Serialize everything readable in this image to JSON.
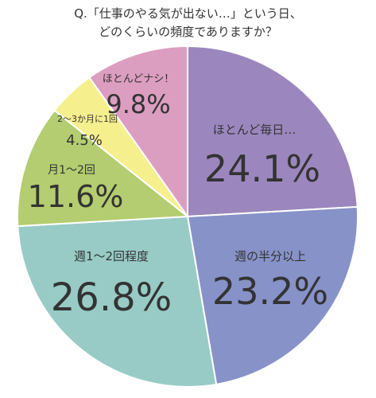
{
  "chart_data": {
    "type": "pie",
    "title_line1": "Q.「仕事のやる気が出ない…」という日、",
    "title_line2": "どのくらいの頻度でありますか？",
    "slices": [
      {
        "label": "ほとんど毎日…",
        "value": 24.1,
        "value_label": "24.1%",
        "color": "#9b87bd"
      },
      {
        "label": "週の半分以上",
        "value": 23.2,
        "value_label": "23.2%",
        "color": "#8792c8"
      },
      {
        "label": "週1～2回程度",
        "value": 26.8,
        "value_label": "26.8%",
        "color": "#98cbc6"
      },
      {
        "label": "月1～2回",
        "value": 11.6,
        "value_label": "11.6%",
        "color": "#b3cd70"
      },
      {
        "label": "2～3か月に1回",
        "value": 4.5,
        "value_label": "4.5%",
        "color": "#f6ef8e"
      },
      {
        "label": "ほとんどナシ！",
        "value": 9.8,
        "value_label": "9.8%",
        "color": "#dc9ec0"
      }
    ]
  }
}
